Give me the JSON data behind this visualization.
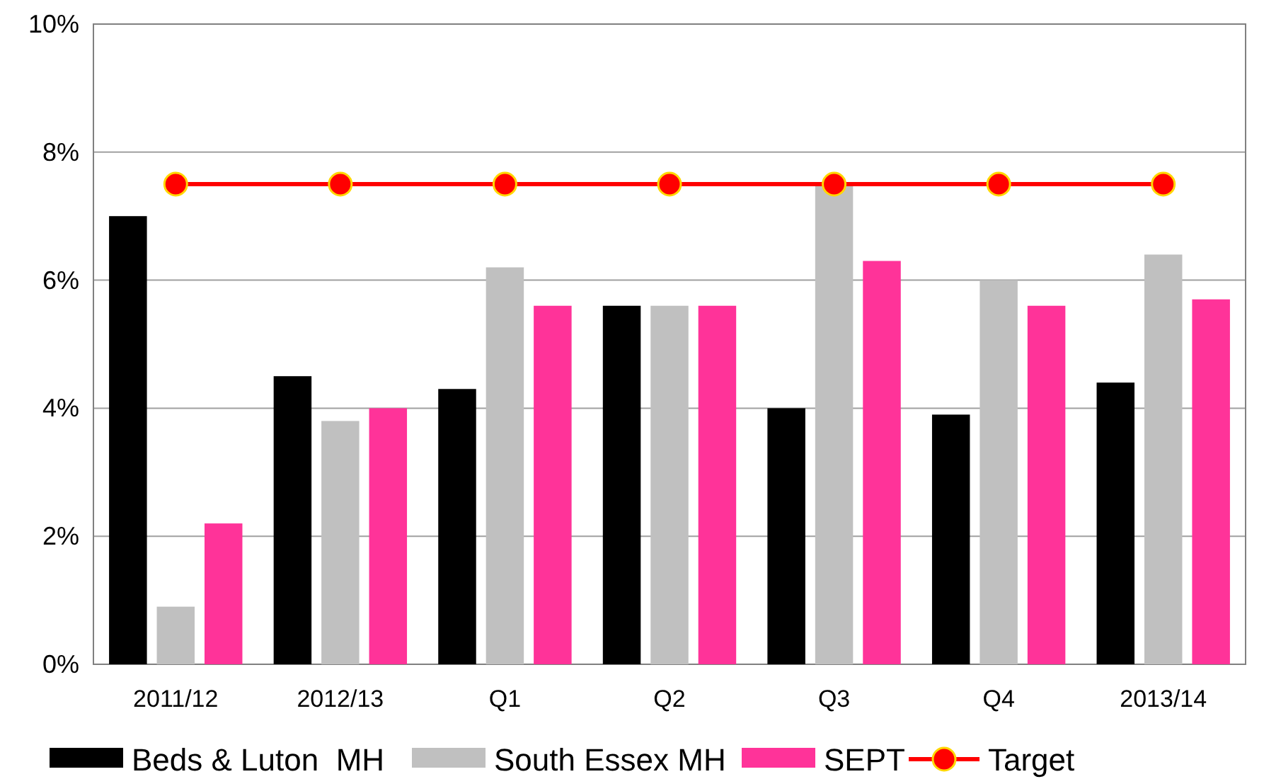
{
  "chart_data": {
    "type": "bar",
    "categories": [
      "2011/12",
      "2012/13",
      "Q1",
      "Q2",
      "Q3",
      "Q4",
      "2013/14"
    ],
    "series": [
      {
        "name": "Beds & Luton  MH",
        "color": "#000000",
        "values": [
          7.0,
          4.5,
          4.3,
          5.6,
          4.0,
          3.9,
          4.4
        ]
      },
      {
        "name": "South Essex MH",
        "color": "#c0c0c0",
        "values": [
          0.9,
          3.8,
          6.2,
          5.6,
          7.5,
          6.0,
          6.4
        ]
      },
      {
        "name": "SEPT",
        "color": "#ff3399",
        "values": [
          2.2,
          4.0,
          5.6,
          5.6,
          6.3,
          5.6,
          5.7
        ]
      },
      {
        "name": "Target",
        "type": "line",
        "color": "#ff0000",
        "marker": "circle",
        "values": [
          7.5,
          7.5,
          7.5,
          7.5,
          7.5,
          7.5,
          7.5
        ]
      }
    ],
    "ylim": [
      0,
      10
    ],
    "yticks": [
      {
        "value": 0,
        "label": "0%"
      },
      {
        "value": 2,
        "label": "2%"
      },
      {
        "value": 4,
        "label": "4%"
      },
      {
        "value": 6,
        "label": "6%"
      },
      {
        "value": 8,
        "label": "8%"
      },
      {
        "value": 10,
        "label": "10%"
      }
    ],
    "grid": "y",
    "legend": "bottom"
  }
}
